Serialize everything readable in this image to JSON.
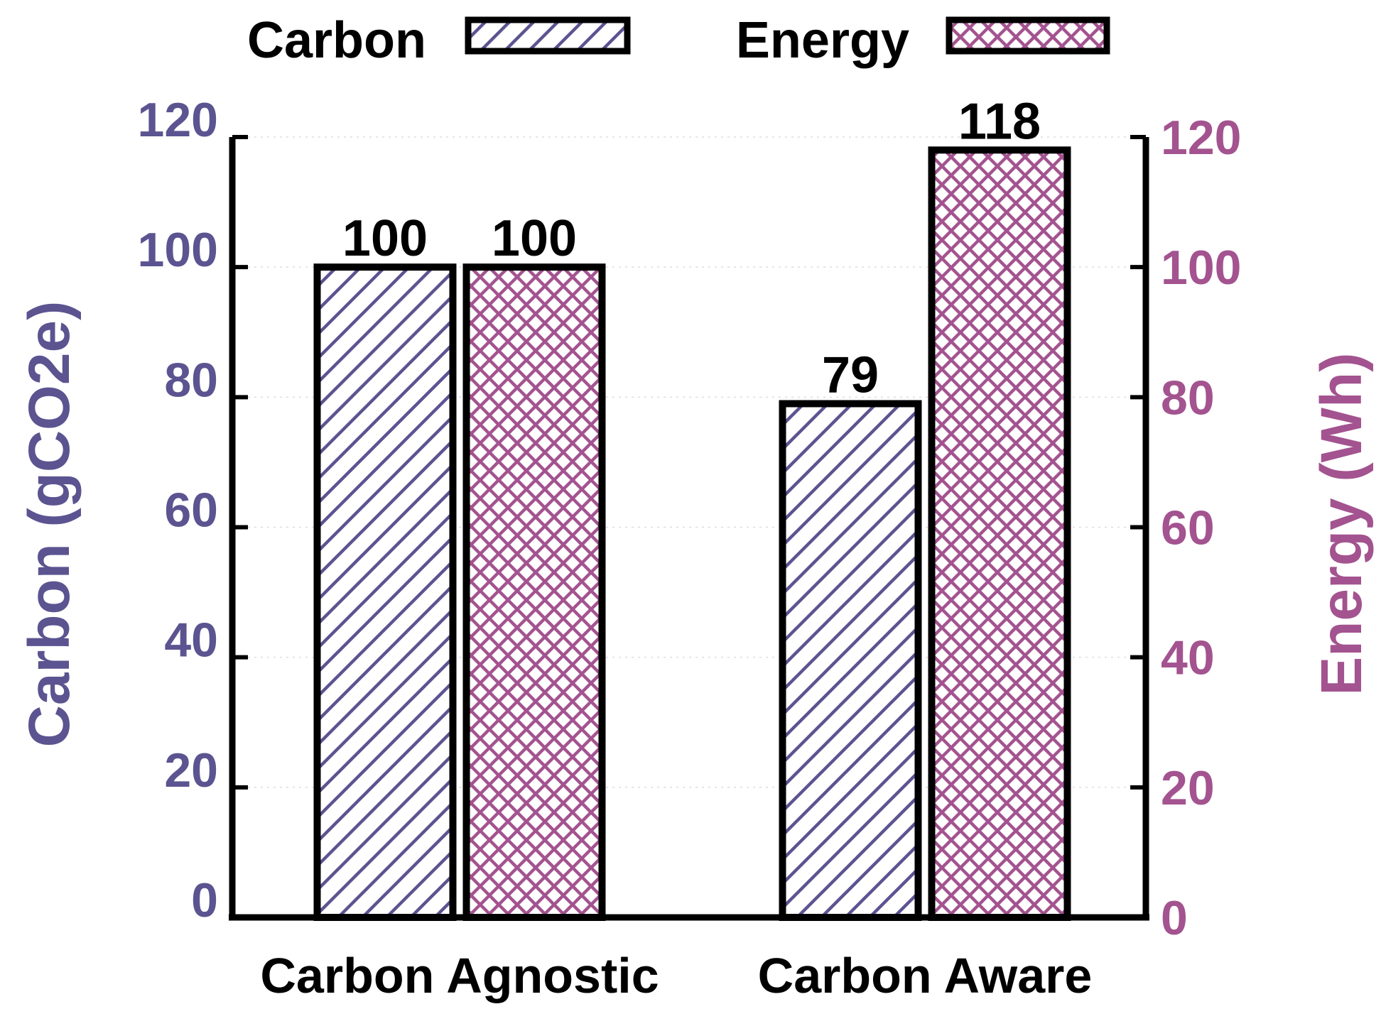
{
  "chart_data": {
    "type": "bar",
    "categories": [
      "Carbon Agnostic",
      "Carbon Aware"
    ],
    "series": [
      {
        "name": "Carbon",
        "values": [
          100,
          79
        ],
        "axis": "left",
        "pattern": "diagonal-hatch",
        "color": "#5b5490"
      },
      {
        "name": "Energy",
        "values": [
          100,
          118
        ],
        "axis": "right",
        "pattern": "cross-hatch",
        "color": "#a3538f"
      }
    ],
    "data_labels": [
      "100",
      "100",
      "79",
      "118"
    ],
    "ylabel": "Carbon (gCO2e)",
    "y2label": "Energy (Wh)",
    "ylim": [
      0,
      120
    ],
    "y2lim": [
      0,
      120
    ],
    "yticks": [
      "0",
      "20",
      "40",
      "60",
      "80",
      "100",
      "120"
    ],
    "y2ticks": [
      "0",
      "20",
      "40",
      "60",
      "80",
      "100",
      "120"
    ],
    "legend": {
      "placement": "top",
      "entries": [
        "Carbon",
        "Energy"
      ]
    },
    "grid": true,
    "colors": {
      "left_axis": "#5b5490",
      "right_axis": "#a3538f",
      "frame": "#000000",
      "grid": "#dddddd"
    }
  }
}
